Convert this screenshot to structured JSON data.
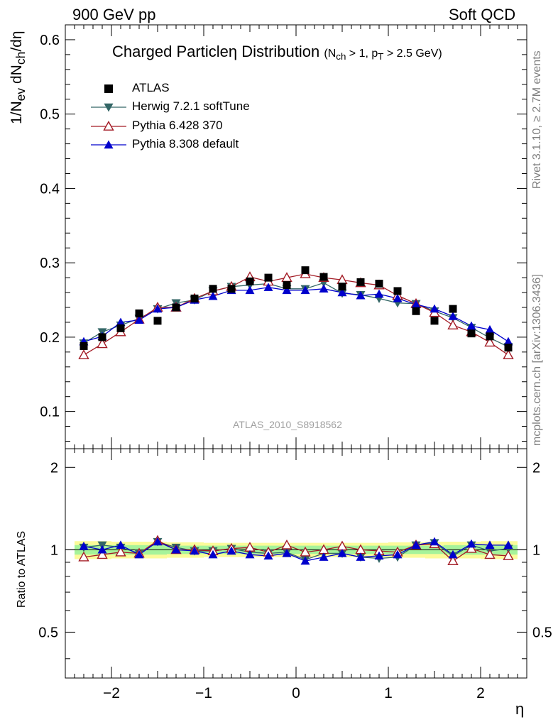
{
  "header": {
    "left": "900 GeV pp",
    "right": "Soft QCD"
  },
  "side": {
    "top": "Rivet 3.1.10, ≥ 2.7M events",
    "bottom": "mcplots.cern.ch [arXiv:1306.3436]"
  },
  "title": {
    "main": "Charged Particleη Distribution",
    "sub": "(N<sub>ch</sub> > 1, p<sub>T</sub> > 2.5 GeV)"
  },
  "ylabel_main": "1/N<sub>ev</sub> dN<sub>ch</sub>/dη",
  "ylabel_ratio": "Ratio to ATLAS",
  "xlabel": "η",
  "analysis_id": "ATLAS_2010_S8918562",
  "legend": [
    {
      "label": "ATLAS",
      "marker": "square",
      "color": "#000000"
    },
    {
      "label": "Herwig 7.2.1 softTune",
      "marker": "triangle-down",
      "color": "#336666"
    },
    {
      "label": "Pythia 6.428 370",
      "marker": "triangle-up-open",
      "color": "#a31b25"
    },
    {
      "label": "Pythia 8.308 default",
      "marker": "triangle-up",
      "color": "#0000cc"
    }
  ],
  "chart_data": {
    "type": "line",
    "xlim": [
      -2.5,
      2.5
    ],
    "ylim": [
      0.05,
      0.62
    ],
    "ratio_ylim": [
      0.34,
      2.34
    ],
    "x_ticks": [
      -2,
      -1,
      0,
      1,
      2
    ],
    "y_ticks": [
      0.1,
      0.2,
      0.3,
      0.4,
      0.5,
      0.6
    ],
    "ratio_ticks": [
      0.5,
      1,
      2
    ],
    "x": [
      -2.3,
      -2.1,
      -1.9,
      -1.7,
      -1.5,
      -1.3,
      -1.1,
      -0.9,
      -0.7,
      -0.5,
      -0.3,
      -0.1,
      0.1,
      0.3,
      0.5,
      0.7,
      0.9,
      1.1,
      1.3,
      1.5,
      1.7,
      1.9,
      2.1,
      2.3
    ],
    "series": [
      {
        "name": "ATLAS",
        "values": [
          0.188,
          0.2,
          0.212,
          0.232,
          0.222,
          0.24,
          0.252,
          0.265,
          0.265,
          0.275,
          0.28,
          0.27,
          0.29,
          0.281,
          0.268,
          0.274,
          0.272,
          0.262,
          0.235,
          0.222,
          0.238,
          0.205,
          0.201,
          0.186
        ]
      },
      {
        "name": "Herwig 7.2.1 softTune",
        "values": [
          0.192,
          0.207,
          0.216,
          0.225,
          0.238,
          0.246,
          0.25,
          0.262,
          0.268,
          0.27,
          0.272,
          0.265,
          0.265,
          0.273,
          0.259,
          0.257,
          0.252,
          0.246,
          0.245,
          0.235,
          0.226,
          0.213,
          0.199,
          0.187
        ]
      },
      {
        "name": "Pythia 6.428 370",
        "values": [
          0.176,
          0.191,
          0.207,
          0.224,
          0.24,
          0.24,
          0.252,
          0.262,
          0.268,
          0.281,
          0.275,
          0.28,
          0.285,
          0.28,
          0.277,
          0.273,
          0.27,
          0.256,
          0.245,
          0.233,
          0.216,
          0.207,
          0.193,
          0.176
        ]
      },
      {
        "name": "Pythia 8.308 default",
        "values": [
          0.194,
          0.201,
          0.22,
          0.223,
          0.238,
          0.24,
          0.25,
          0.255,
          0.263,
          0.263,
          0.267,
          0.263,
          0.263,
          0.265,
          0.26,
          0.256,
          0.258,
          0.252,
          0.244,
          0.238,
          0.228,
          0.215,
          0.21,
          0.194
        ]
      }
    ],
    "ratio": [
      {
        "name": "Herwig 7.2.1 softTune",
        "values": [
          1.02,
          1.04,
          1.02,
          0.97,
          1.07,
          1.02,
          0.99,
          0.99,
          1.01,
          0.98,
          0.97,
          0.98,
          0.92,
          0.97,
          0.97,
          0.94,
          0.93,
          0.94,
          1.04,
          1.06,
          0.95,
          1.04,
          0.99,
          1.01
        ]
      },
      {
        "name": "Pythia 6.428 370",
        "values": [
          0.94,
          0.96,
          0.98,
          0.97,
          1.08,
          1.0,
          1.0,
          0.99,
          1.01,
          1.02,
          0.98,
          1.04,
          0.98,
          1.0,
          1.03,
          1.0,
          0.99,
          0.98,
          1.04,
          1.05,
          0.91,
          1.01,
          0.96,
          0.95
        ]
      },
      {
        "name": "Pythia 8.308 default",
        "values": [
          1.03,
          1.0,
          1.04,
          0.96,
          1.07,
          1.0,
          0.99,
          0.96,
          0.99,
          0.96,
          0.95,
          0.97,
          0.91,
          0.94,
          0.97,
          0.94,
          0.95,
          0.96,
          1.04,
          1.07,
          0.96,
          1.05,
          1.04,
          1.04
        ]
      }
    ],
    "uncertainty_band": {
      "inner": [
        0.04,
        0.04,
        0.04,
        0.04,
        0.04,
        0.035,
        0.035,
        0.035,
        0.035,
        0.035,
        0.035,
        0.035,
        0.035,
        0.035,
        0.035,
        0.035,
        0.035,
        0.035,
        0.035,
        0.035,
        0.04,
        0.04,
        0.04,
        0.04
      ],
      "outer": [
        0.075,
        0.075,
        0.07,
        0.07,
        0.07,
        0.065,
        0.065,
        0.06,
        0.06,
        0.06,
        0.06,
        0.06,
        0.06,
        0.06,
        0.06,
        0.06,
        0.06,
        0.065,
        0.065,
        0.07,
        0.07,
        0.07,
        0.075,
        0.075
      ]
    },
    "colors": {
      "band_inner": "#a6f39a",
      "band_outer": "#fbfb99",
      "herwig": "#336666",
      "pythia6": "#a31b25",
      "pythia8": "#0000cc"
    }
  }
}
